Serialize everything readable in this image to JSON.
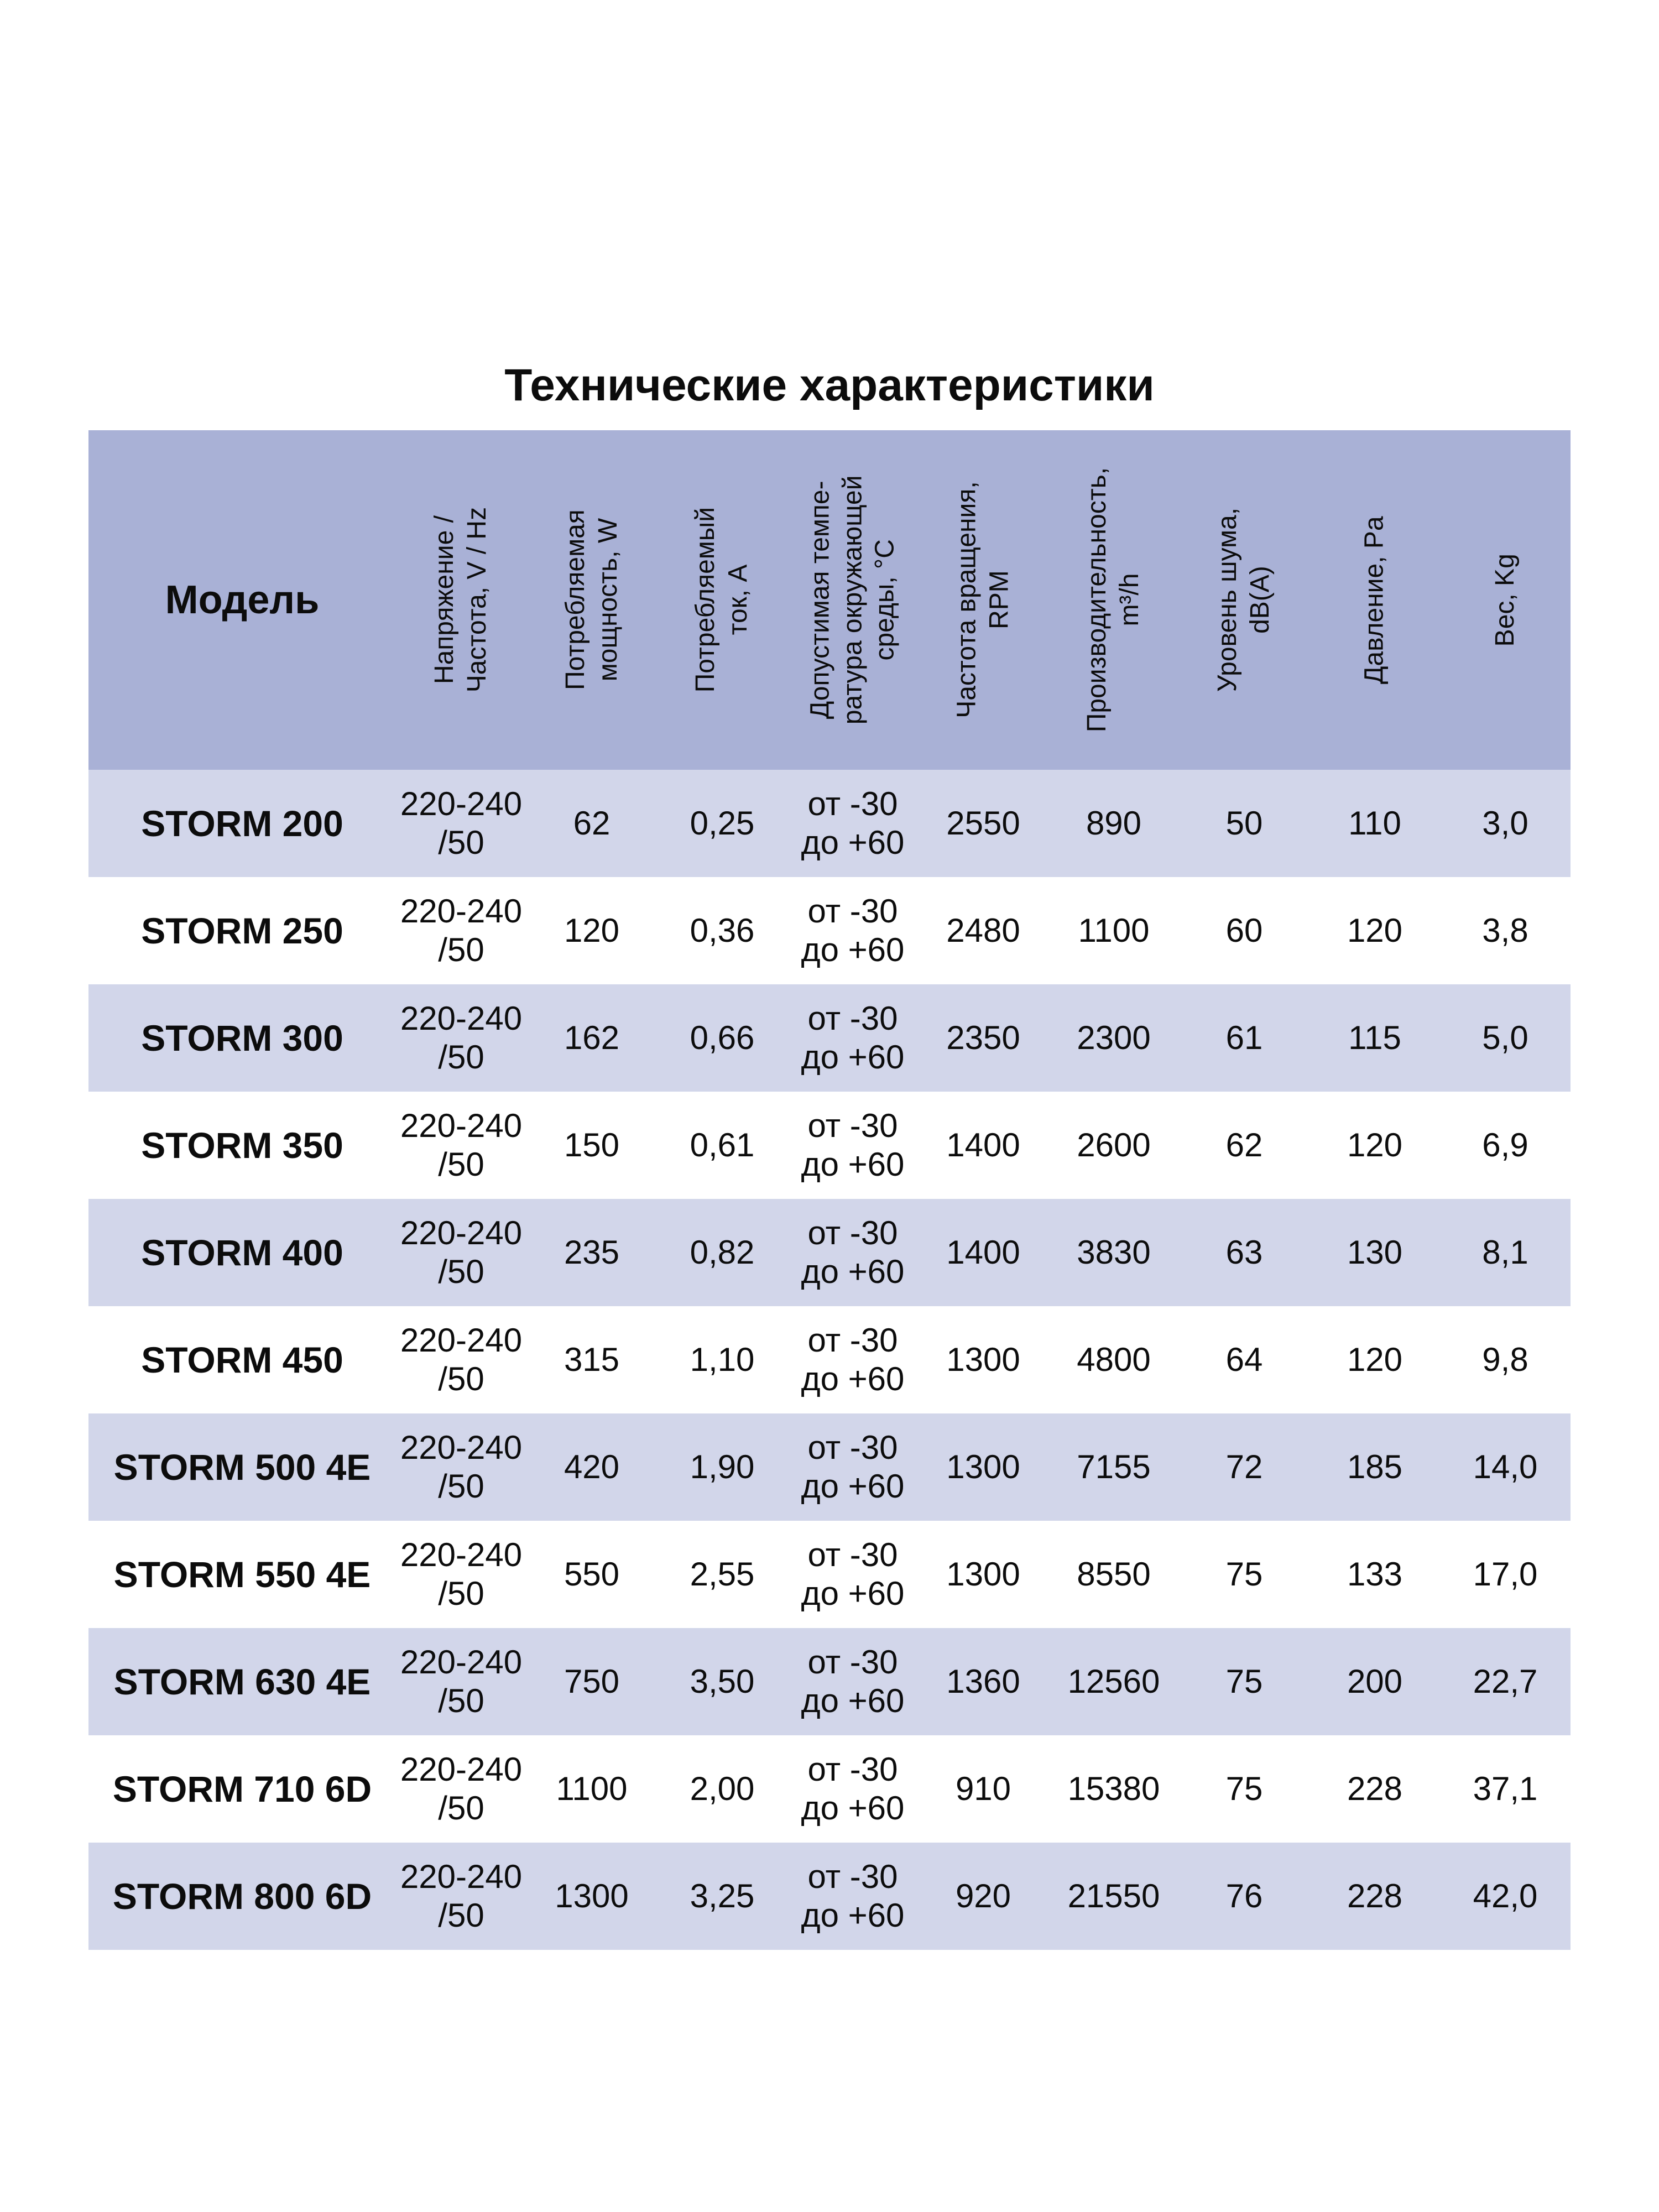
{
  "title": "Технические характеристики",
  "colors": {
    "page_bg": "#ffffff",
    "header_bg": "#a9b1d6",
    "stripe_bg": "#d2d6ea",
    "row_bg": "#ffffff",
    "text": "#0c0c0c"
  },
  "table": {
    "model_header": "Модель",
    "column_headers": [
      "Напряжение /\nЧастота, V / Hz",
      "Потребляемая\nмощность, W",
      "Потребляемый\nток, A",
      "Допустимая темпе-\nратура окружающей\nсреды, °C",
      "Частота вращения,\nRPM",
      "Производительность,\nm³/h",
      "Уровень шума,\ndB(A)",
      "Давление, Pa",
      "Вес, Kg"
    ],
    "rows": [
      {
        "model": "STORM 200",
        "values": [
          "220-240\n/50",
          "62",
          "0,25",
          "от -30\nдо +60",
          "2550",
          "890",
          "50",
          "110",
          "3,0"
        ]
      },
      {
        "model": "STORM 250",
        "values": [
          "220-240\n/50",
          "120",
          "0,36",
          "от -30\nдо +60",
          "2480",
          "1100",
          "60",
          "120",
          "3,8"
        ]
      },
      {
        "model": "STORM 300",
        "values": [
          "220-240\n/50",
          "162",
          "0,66",
          "от -30\nдо +60",
          "2350",
          "2300",
          "61",
          "115",
          "5,0"
        ]
      },
      {
        "model": "STORM 350",
        "values": [
          "220-240\n/50",
          "150",
          "0,61",
          "от -30\nдо +60",
          "1400",
          "2600",
          "62",
          "120",
          "6,9"
        ]
      },
      {
        "model": "STORM 400",
        "values": [
          "220-240\n/50",
          "235",
          "0,82",
          "от -30\nдо +60",
          "1400",
          "3830",
          "63",
          "130",
          "8,1"
        ]
      },
      {
        "model": "STORM 450",
        "values": [
          "220-240\n/50",
          "315",
          "1,10",
          "от -30\nдо +60",
          "1300",
          "4800",
          "64",
          "120",
          "9,8"
        ]
      },
      {
        "model": "STORM 500 4E",
        "values": [
          "220-240\n/50",
          "420",
          "1,90",
          "от -30\nдо +60",
          "1300",
          "7155",
          "72",
          "185",
          "14,0"
        ]
      },
      {
        "model": "STORM 550 4E",
        "values": [
          "220-240\n/50",
          "550",
          "2,55",
          "от -30\nдо +60",
          "1300",
          "8550",
          "75",
          "133",
          "17,0"
        ]
      },
      {
        "model": "STORM 630 4E",
        "values": [
          "220-240\n/50",
          "750",
          "3,50",
          "от -30\nдо +60",
          "1360",
          "12560",
          "75",
          "200",
          "22,7"
        ]
      },
      {
        "model": "STORM 710 6D",
        "values": [
          "220-240\n/50",
          "1100",
          "2,00",
          "от -30\nдо +60",
          "910",
          "15380",
          "75",
          "228",
          "37,1"
        ]
      },
      {
        "model": "STORM 800 6D",
        "values": [
          "220-240\n/50",
          "1300",
          "3,25",
          "от -30\nдо +60",
          "920",
          "21550",
          "76",
          "228",
          "42,0"
        ]
      }
    ]
  }
}
